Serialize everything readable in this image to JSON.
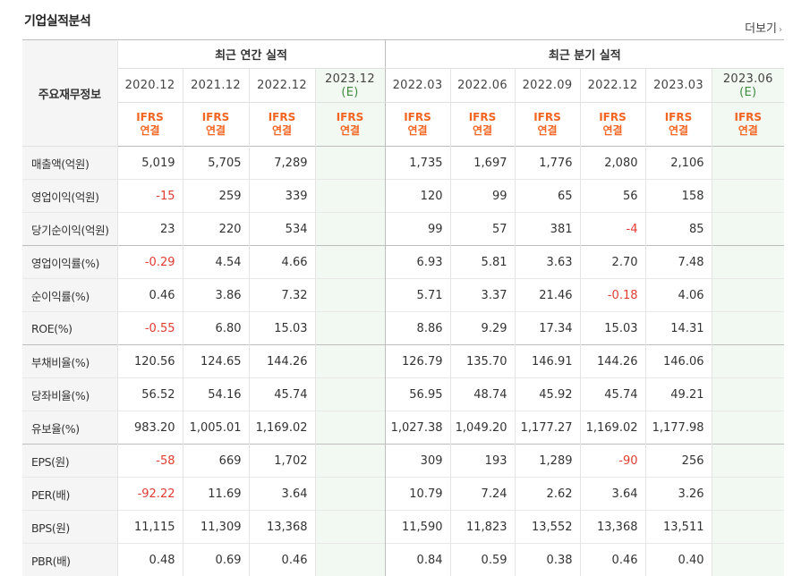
{
  "title": "기업실적분석",
  "more_label": "더보기",
  "more_arrow": "›",
  "header": {
    "row_label": "주요재무정보",
    "annual_group": "최근 연간 실적",
    "quarter_group": "최근 분기 실적",
    "annual_periods": [
      "2020.12",
      "2021.12",
      "2022.12",
      "2023.12"
    ],
    "annual_est_mark": "(E)",
    "quarter_periods": [
      "2022.03",
      "2022.06",
      "2022.09",
      "2022.12",
      "2023.03",
      "2023.06"
    ],
    "quarter_est_mark": "(E)",
    "std_top": "IFRS",
    "std_bottom": "연결"
  },
  "rows": [
    {
      "label": "매출액(억원)",
      "values": [
        "5,019",
        "5,705",
        "7,289",
        "",
        "1,735",
        "1,697",
        "1,776",
        "2,080",
        "2,106",
        ""
      ]
    },
    {
      "label": "영업이익(억원)",
      "values": [
        "-15",
        "259",
        "339",
        "",
        "120",
        "99",
        "65",
        "56",
        "158",
        ""
      ]
    },
    {
      "label": "당기순이익(억원)",
      "values": [
        "23",
        "220",
        "534",
        "",
        "99",
        "57",
        "381",
        "-4",
        "85",
        ""
      ]
    },
    {
      "label": "영업이익률(%)",
      "values": [
        "-0.29",
        "4.54",
        "4.66",
        "",
        "6.93",
        "5.81",
        "3.63",
        "2.70",
        "7.48",
        ""
      ]
    },
    {
      "label": "순이익률(%)",
      "values": [
        "0.46",
        "3.86",
        "7.32",
        "",
        "5.71",
        "3.37",
        "21.46",
        "-0.18",
        "4.06",
        ""
      ]
    },
    {
      "label": "ROE(%)",
      "values": [
        "-0.55",
        "6.80",
        "15.03",
        "",
        "8.86",
        "9.29",
        "17.34",
        "15.03",
        "14.31",
        ""
      ]
    },
    {
      "label": "부채비율(%)",
      "values": [
        "120.56",
        "124.65",
        "144.26",
        "",
        "126.79",
        "135.70",
        "146.91",
        "144.26",
        "146.06",
        ""
      ]
    },
    {
      "label": "당좌비율(%)",
      "values": [
        "56.52",
        "54.16",
        "45.74",
        "",
        "56.95",
        "48.74",
        "45.92",
        "45.74",
        "49.21",
        ""
      ]
    },
    {
      "label": "유보율(%)",
      "values": [
        "983.20",
        "1,005.01",
        "1,169.02",
        "",
        "1,027.38",
        "1,049.20",
        "1,177.27",
        "1,169.02",
        "1,177.98",
        ""
      ]
    },
    {
      "label": "EPS(원)",
      "values": [
        "-58",
        "669",
        "1,702",
        "",
        "309",
        "193",
        "1,289",
        "-90",
        "256",
        ""
      ]
    },
    {
      "label": "PER(배)",
      "values": [
        "-92.22",
        "11.69",
        "3.64",
        "",
        "10.79",
        "7.24",
        "2.62",
        "3.64",
        "3.26",
        ""
      ]
    },
    {
      "label": "BPS(원)",
      "values": [
        "11,115",
        "11,309",
        "13,368",
        "",
        "11,590",
        "11,823",
        "13,552",
        "13,368",
        "13,511",
        ""
      ]
    },
    {
      "label": "PBR(배)",
      "values": [
        "0.48",
        "0.69",
        "0.46",
        "",
        "0.84",
        "0.59",
        "0.38",
        "0.46",
        "0.40",
        ""
      ]
    }
  ],
  "colors": {
    "negative": "#e03c31",
    "accent": "#f26522",
    "estimate_bg": "#f2f8f2"
  }
}
